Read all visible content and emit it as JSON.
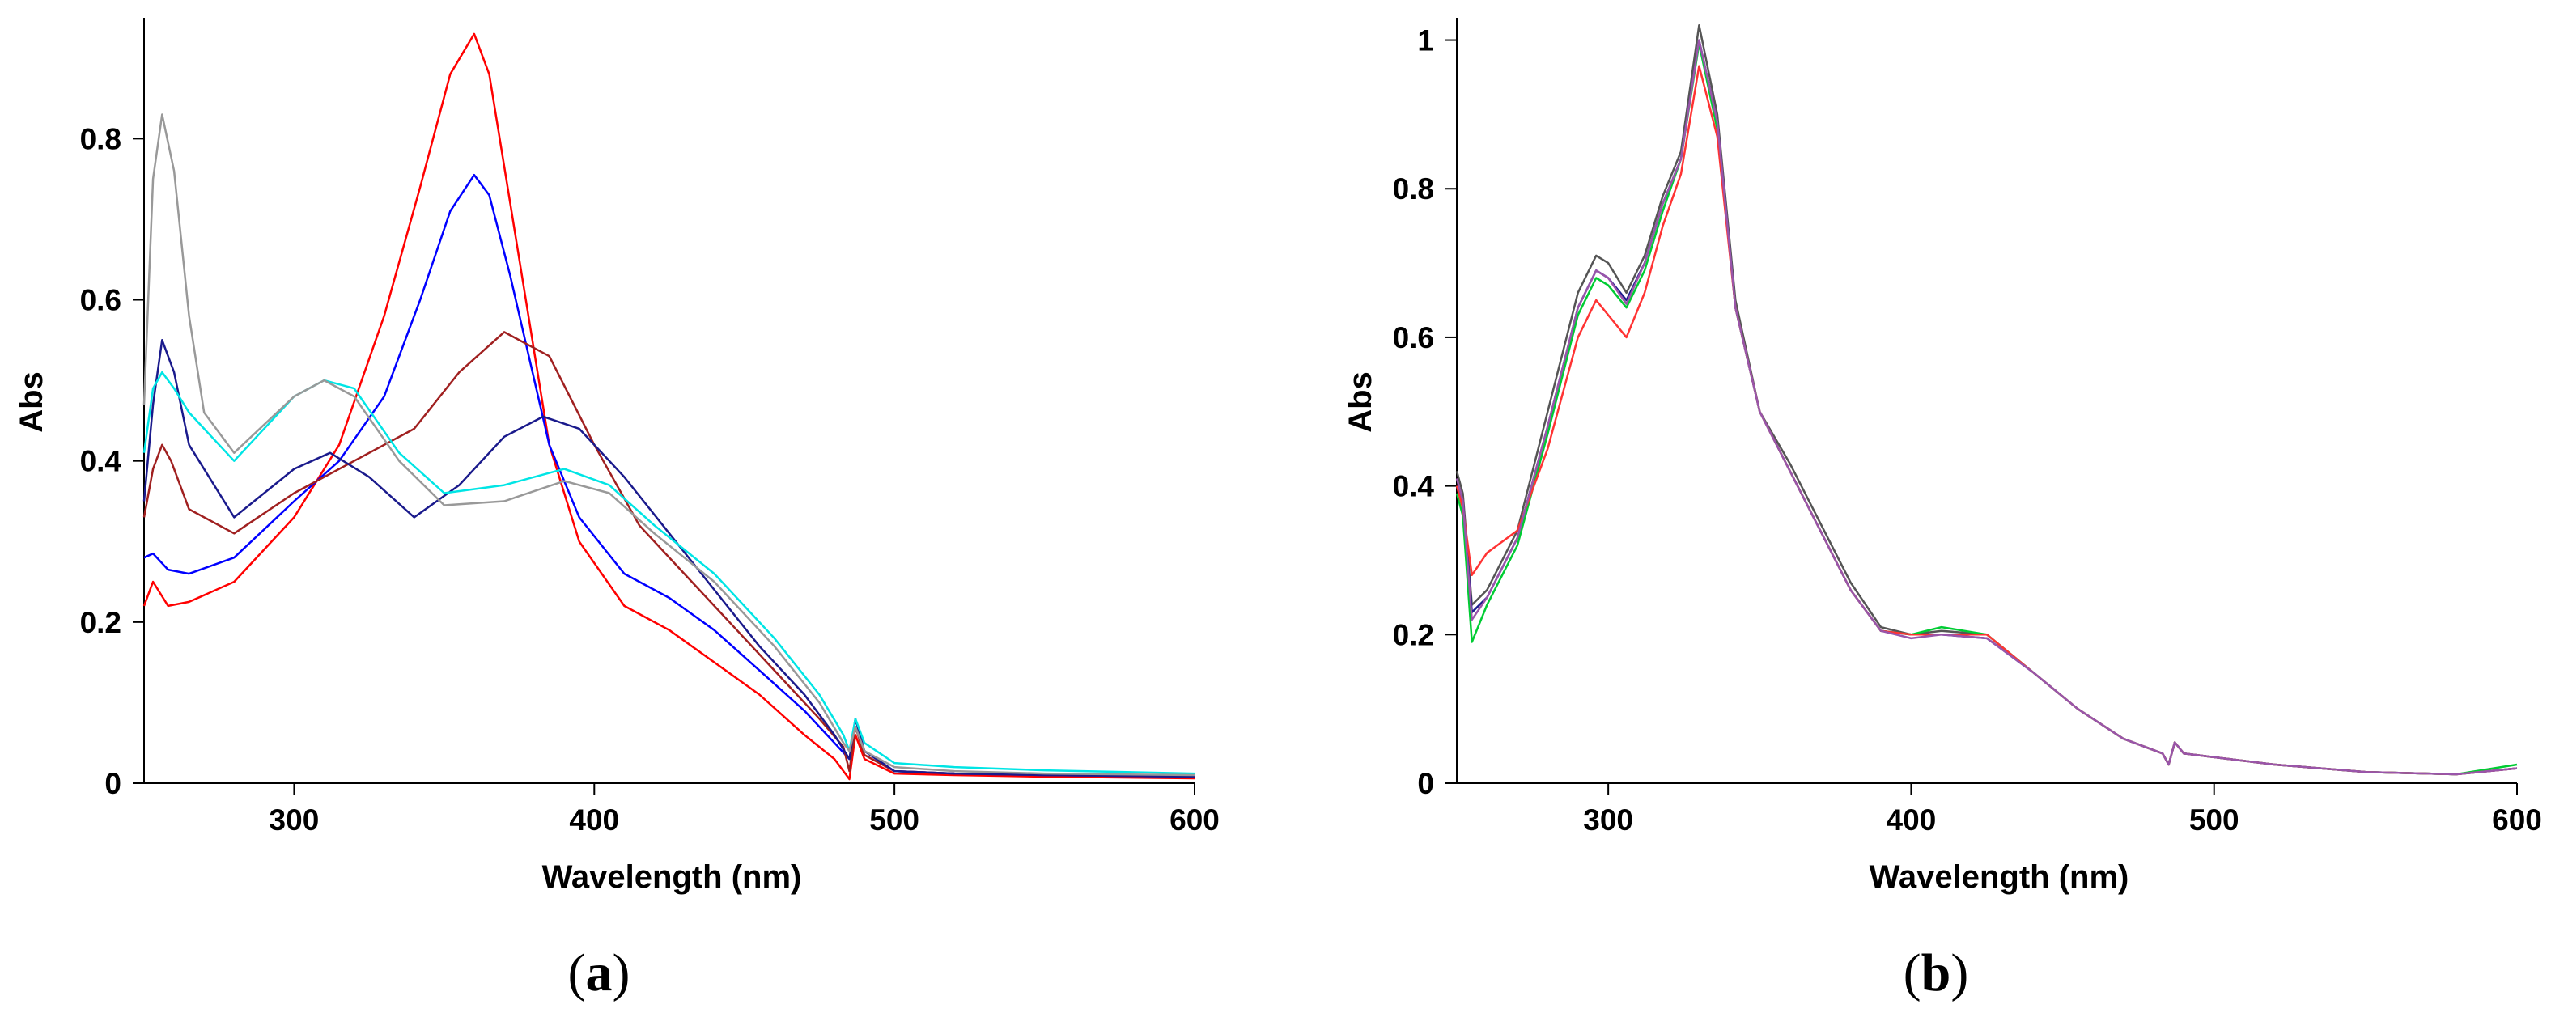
{
  "chart_data": [
    {
      "type": "line",
      "panel_label": "a",
      "xlabel": "Wavelength (nm)",
      "ylabel": "Abs",
      "xlim": [
        250,
        600
      ],
      "ylim": [
        0,
        0.95
      ],
      "xticks": [
        300,
        400,
        500,
        600
      ],
      "yticks": [
        0,
        0.2,
        0.4,
        0.6,
        0.8
      ],
      "ytick_labels": [
        "0",
        "0.2",
        "0.4",
        "0.6",
        "0.8"
      ],
      "grid": false,
      "series": [
        {
          "color": "#ff0000",
          "x": [
            250,
            253,
            258,
            265,
            280,
            300,
            315,
            330,
            342,
            352,
            360,
            365,
            372,
            385,
            395,
            410,
            425,
            440,
            455,
            470,
            480,
            485,
            487,
            490,
            500,
            520,
            550,
            600
          ],
          "y": [
            0.22,
            0.25,
            0.22,
            0.225,
            0.25,
            0.33,
            0.42,
            0.58,
            0.74,
            0.88,
            0.93,
            0.88,
            0.72,
            0.42,
            0.3,
            0.22,
            0.19,
            0.15,
            0.11,
            0.06,
            0.03,
            0.005,
            0.06,
            0.03,
            0.012,
            0.01,
            0.008,
            0.006
          ]
        },
        {
          "color": "#0000ff",
          "x": [
            250,
            253,
            258,
            265,
            280,
            300,
            315,
            330,
            342,
            352,
            360,
            365,
            372,
            385,
            395,
            410,
            425,
            440,
            455,
            470,
            480,
            485,
            487,
            490,
            500,
            520,
            550,
            600
          ],
          "y": [
            0.28,
            0.285,
            0.265,
            0.26,
            0.28,
            0.35,
            0.4,
            0.48,
            0.6,
            0.71,
            0.755,
            0.73,
            0.63,
            0.42,
            0.33,
            0.26,
            0.23,
            0.19,
            0.14,
            0.09,
            0.05,
            0.03,
            0.07,
            0.04,
            0.015,
            0.012,
            0.01,
            0.008
          ]
        },
        {
          "color": "#a02020",
          "x": [
            250,
            253,
            256,
            259,
            265,
            280,
            300,
            320,
            340,
            355,
            370,
            385,
            400,
            415,
            430,
            445,
            460,
            475,
            483,
            485,
            487,
            490,
            500,
            520,
            550,
            600
          ],
          "y": [
            0.33,
            0.39,
            0.42,
            0.4,
            0.34,
            0.31,
            0.36,
            0.4,
            0.44,
            0.51,
            0.56,
            0.53,
            0.42,
            0.32,
            0.26,
            0.2,
            0.14,
            0.08,
            0.045,
            0.015,
            0.07,
            0.035,
            0.015,
            0.012,
            0.01,
            0.008
          ]
        },
        {
          "color": "#1a1a8c",
          "x": [
            250,
            253,
            256,
            260,
            265,
            280,
            300,
            312,
            325,
            340,
            355,
            370,
            383,
            395,
            410,
            425,
            440,
            455,
            470,
            480,
            485,
            487,
            490,
            500,
            520,
            550,
            600
          ],
          "y": [
            0.35,
            0.47,
            0.55,
            0.51,
            0.42,
            0.33,
            0.39,
            0.41,
            0.38,
            0.33,
            0.37,
            0.43,
            0.455,
            0.44,
            0.38,
            0.31,
            0.24,
            0.17,
            0.11,
            0.06,
            0.03,
            0.08,
            0.04,
            0.015,
            0.012,
            0.01,
            0.008
          ]
        },
        {
          "color": "#00e5e5",
          "x": [
            250,
            253,
            256,
            260,
            265,
            280,
            300,
            310,
            320,
            335,
            350,
            370,
            390,
            405,
            420,
            440,
            460,
            475,
            483,
            485,
            487,
            490,
            500,
            520,
            550,
            600
          ],
          "y": [
            0.41,
            0.49,
            0.51,
            0.49,
            0.46,
            0.4,
            0.48,
            0.5,
            0.49,
            0.41,
            0.36,
            0.37,
            0.39,
            0.37,
            0.32,
            0.26,
            0.18,
            0.11,
            0.06,
            0.04,
            0.08,
            0.05,
            0.025,
            0.02,
            0.016,
            0.012
          ]
        },
        {
          "color": "#999999",
          "x": [
            250,
            253,
            256,
            260,
            265,
            270,
            280,
            300,
            310,
            320,
            335,
            350,
            370,
            390,
            405,
            420,
            440,
            460,
            475,
            483,
            485,
            487,
            490,
            500,
            520,
            550,
            600
          ],
          "y": [
            0.47,
            0.75,
            0.83,
            0.76,
            0.58,
            0.46,
            0.41,
            0.48,
            0.5,
            0.48,
            0.4,
            0.345,
            0.35,
            0.375,
            0.36,
            0.31,
            0.25,
            0.17,
            0.1,
            0.05,
            0.04,
            0.07,
            0.04,
            0.02,
            0.015,
            0.012,
            0.01
          ]
        }
      ]
    },
    {
      "type": "line",
      "panel_label": "b",
      "xlabel": "Wavelength (nm)",
      "ylabel": "Abs",
      "xlim": [
        250,
        600
      ],
      "ylim": [
        0,
        1.03
      ],
      "xticks": [
        300,
        400,
        500,
        600
      ],
      "yticks": [
        0,
        0.2,
        0.4,
        0.6,
        0.8,
        1
      ],
      "ytick_labels": [
        "0",
        "0.2",
        "0.4",
        "0.6",
        "0.8",
        "1"
      ],
      "grid": false,
      "series": [
        {
          "color": "#555555",
          "x": [
            250,
            252,
            255,
            260,
            270,
            280,
            290,
            296,
            300,
            306,
            312,
            318,
            324,
            330,
            336,
            342,
            350,
            360,
            370,
            380,
            390,
            400,
            410,
            425,
            440,
            455,
            470,
            483,
            485,
            487,
            490,
            500,
            520,
            550,
            580,
            600
          ],
          "y": [
            0.42,
            0.39,
            0.24,
            0.26,
            0.34,
            0.5,
            0.66,
            0.71,
            0.7,
            0.66,
            0.71,
            0.79,
            0.85,
            1.02,
            0.9,
            0.65,
            0.5,
            0.43,
            0.35,
            0.27,
            0.21,
            0.2,
            0.205,
            0.2,
            0.15,
            0.1,
            0.06,
            0.04,
            0.025,
            0.055,
            0.04,
            0.035,
            0.025,
            0.015,
            0.012,
            0.02
          ]
        },
        {
          "color": "#1a1a8c",
          "x": [
            250,
            252,
            255,
            260,
            270,
            280,
            290,
            296,
            300,
            306,
            312,
            318,
            324,
            330,
            336,
            342,
            350,
            360,
            370,
            380,
            390,
            400,
            410,
            425,
            440,
            455,
            470,
            483,
            485,
            487,
            490,
            500,
            520,
            550,
            580,
            600
          ],
          "y": [
            0.4,
            0.38,
            0.23,
            0.25,
            0.33,
            0.48,
            0.64,
            0.69,
            0.68,
            0.65,
            0.7,
            0.78,
            0.84,
            1.0,
            0.89,
            0.64,
            0.5,
            0.42,
            0.34,
            0.26,
            0.205,
            0.2,
            0.2,
            0.195,
            0.15,
            0.1,
            0.06,
            0.04,
            0.025,
            0.055,
            0.04,
            0.035,
            0.025,
            0.015,
            0.012,
            0.02
          ]
        },
        {
          "color": "#00cc33",
          "x": [
            250,
            252,
            255,
            260,
            270,
            280,
            290,
            296,
            300,
            306,
            312,
            318,
            324,
            330,
            336,
            342,
            350,
            360,
            370,
            380,
            390,
            400,
            410,
            425,
            440,
            455,
            470,
            483,
            485,
            487,
            490,
            500,
            520,
            550,
            580,
            600
          ],
          "y": [
            0.39,
            0.36,
            0.19,
            0.24,
            0.32,
            0.47,
            0.63,
            0.68,
            0.67,
            0.64,
            0.69,
            0.77,
            0.84,
            0.995,
            0.88,
            0.64,
            0.5,
            0.42,
            0.34,
            0.26,
            0.205,
            0.2,
            0.21,
            0.2,
            0.15,
            0.1,
            0.06,
            0.04,
            0.025,
            0.055,
            0.04,
            0.035,
            0.025,
            0.015,
            0.012,
            0.025
          ]
        },
        {
          "color": "#ff3333",
          "x": [
            250,
            252,
            255,
            260,
            270,
            280,
            290,
            296,
            300,
            306,
            312,
            318,
            324,
            330,
            336,
            342,
            350,
            360,
            370,
            380,
            390,
            400,
            410,
            425,
            440,
            455,
            470,
            483,
            485,
            487,
            490,
            500,
            520,
            550,
            580,
            600
          ],
          "y": [
            0.4,
            0.37,
            0.28,
            0.31,
            0.34,
            0.45,
            0.6,
            0.65,
            0.63,
            0.6,
            0.66,
            0.75,
            0.82,
            0.965,
            0.87,
            0.64,
            0.5,
            0.42,
            0.34,
            0.26,
            0.205,
            0.2,
            0.2,
            0.2,
            0.15,
            0.1,
            0.06,
            0.04,
            0.025,
            0.055,
            0.04,
            0.035,
            0.025,
            0.015,
            0.012,
            0.02
          ]
        },
        {
          "color": "#9955aa",
          "x": [
            250,
            252,
            255,
            260,
            270,
            280,
            290,
            296,
            300,
            306,
            312,
            318,
            324,
            330,
            336,
            342,
            350,
            360,
            370,
            380,
            390,
            400,
            410,
            425,
            440,
            455,
            470,
            483,
            485,
            487,
            490,
            500,
            520,
            550,
            580,
            600
          ],
          "y": [
            0.41,
            0.38,
            0.22,
            0.25,
            0.33,
            0.48,
            0.64,
            0.69,
            0.68,
            0.645,
            0.7,
            0.78,
            0.84,
            1.0,
            0.89,
            0.64,
            0.5,
            0.42,
            0.34,
            0.26,
            0.205,
            0.195,
            0.2,
            0.195,
            0.15,
            0.1,
            0.06,
            0.04,
            0.025,
            0.055,
            0.04,
            0.035,
            0.025,
            0.015,
            0.012,
            0.02
          ]
        }
      ]
    }
  ]
}
